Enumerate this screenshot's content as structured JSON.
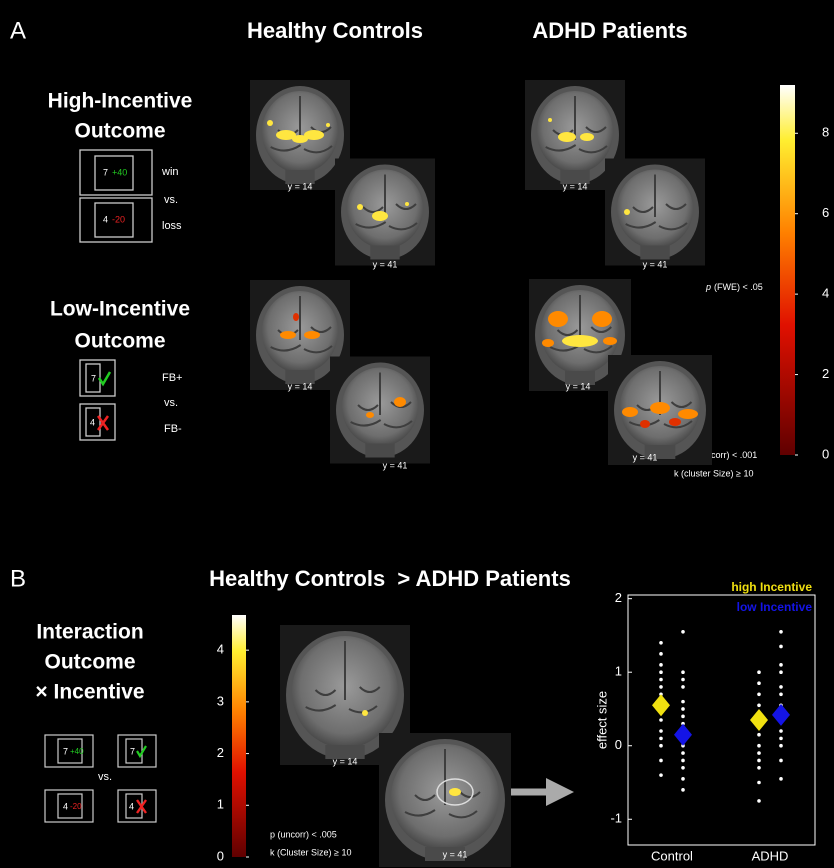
{
  "panel_a": {
    "label": "A",
    "col_left": "Healthy Controls",
    "col_right": "ADHD Patients",
    "high": {
      "title_1": "High-Incentive",
      "title_2": "Outcome",
      "win_number": "7",
      "win_amount": "+40",
      "loss_number": "4",
      "loss_amount": "-20",
      "win": "win",
      "vs": "vs.",
      "loss": "loss"
    },
    "low": {
      "title_1": "Low-Incentive",
      "title_2": "Outcome",
      "pos_number": "7",
      "neg_number": "4",
      "pos": "FB+",
      "vs": "vs.",
      "neg": "FB-"
    },
    "slice_1": "y = 14",
    "slice_2": "y = 41",
    "threshold_high": {
      "p": "p",
      "rest": "(FWE) < .05"
    },
    "threshold_low": {
      "p": "p",
      "rest": "(uncorr) < .001",
      "k": "k (cluster Size) ≥ 10"
    },
    "colorbar": {
      "ylim": [
        0,
        9.2
      ],
      "ticks": [
        0,
        2,
        4,
        6,
        8
      ]
    }
  },
  "panel_b": {
    "label": "B",
    "title": "Healthy Controls  > ADHD Patients",
    "interaction": [
      "Interaction",
      "Outcome",
      "× Incentive"
    ],
    "cues": {
      "n1": "7",
      "a1": "+40",
      "n2": "7",
      "n3": "4",
      "a3": "-20",
      "n4": "4",
      "vs": "vs."
    },
    "slice_1": "y = 14",
    "slice_2": "y = 41",
    "threshold": {
      "p": "p (uncorr) < .005",
      "k": "k (Cluster Size) ≥ 10"
    },
    "colorbar": {
      "ylim": [
        0,
        4.68
      ],
      "ticks": [
        0,
        1,
        2,
        3,
        4
      ]
    },
    "plot": {
      "type": "scatter",
      "ylabel": "effect size",
      "categories": [
        "Control",
        "ADHD"
      ],
      "ylim": [
        -1.35,
        2.05
      ],
      "yticks": [
        -1,
        0,
        1,
        2
      ],
      "series": [
        {
          "name": "high Incentive",
          "color": "#f0e010",
          "means": [
            0.55,
            0.35
          ],
          "points": [
            [
              1.4,
              1.25,
              1.1,
              1.0,
              0.9,
              0.8,
              0.7,
              0.6,
              0.5,
              0.45,
              0.35,
              0.2,
              0.1,
              0.0,
              -0.2,
              -0.4
            ],
            [
              1.0,
              0.85,
              0.7,
              0.55,
              0.45,
              0.35,
              0.25,
              0.15,
              0.0,
              -0.1,
              -0.2,
              -0.3,
              -0.5,
              -0.75
            ]
          ]
        },
        {
          "name": "low Incentive",
          "color": "#1414e6",
          "means": [
            0.15,
            0.42
          ],
          "points": [
            [
              1.55,
              1.0,
              0.9,
              0.8,
              0.6,
              0.5,
              0.4,
              0.3,
              0.2,
              0.1,
              0.0,
              -0.1,
              -0.2,
              -0.3,
              -0.45,
              -0.6
            ],
            [
              1.55,
              1.35,
              1.1,
              1.0,
              0.8,
              0.7,
              0.55,
              0.45,
              0.35,
              0.2,
              0.1,
              0.0,
              -0.2,
              -0.45
            ]
          ]
        }
      ]
    }
  }
}
